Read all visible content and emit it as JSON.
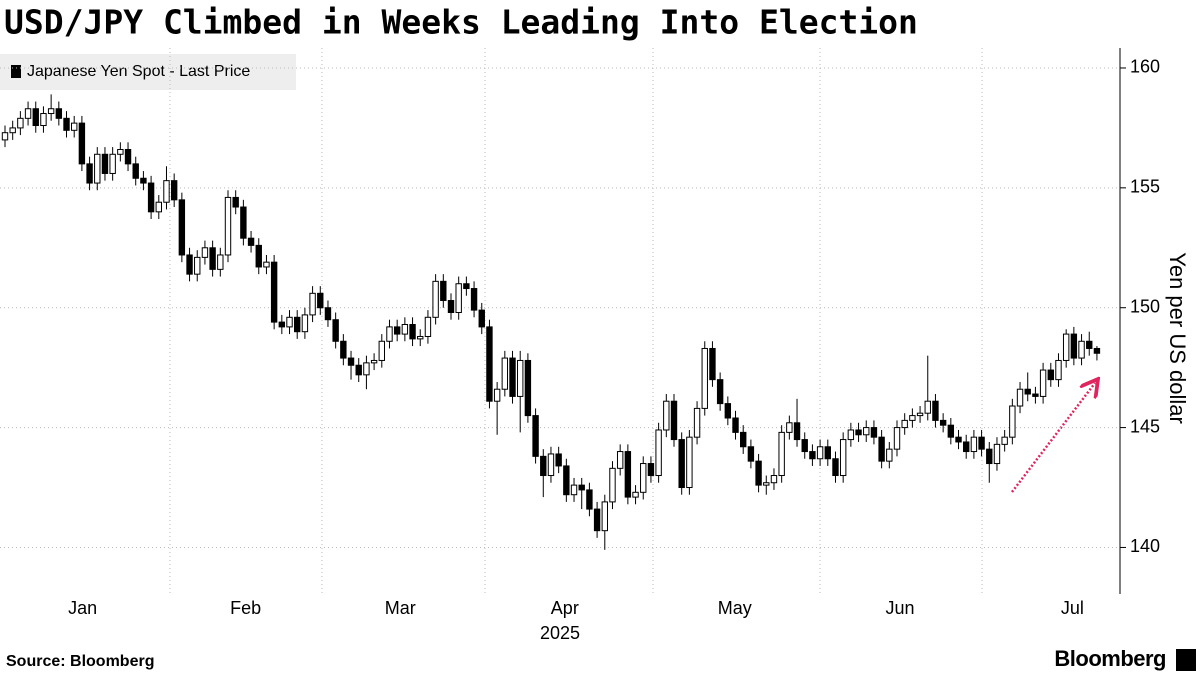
{
  "chart_data": {
    "type": "candlestick",
    "title": "USD/JPY Climbed in Weeks Leading Into Election",
    "legend": "Japanese Yen Spot - Last Price",
    "y_label": "Yen per US dollar",
    "x_label": "2025",
    "source": "Source: Bloomberg",
    "brand": "Bloomberg",
    "up_color": "#ffffff",
    "down_color": "#000000",
    "ylim": [
      138.1,
      160.75
    ],
    "yticks": [
      140,
      145,
      150,
      155,
      160
    ],
    "xlim": [
      -0.65,
      145
    ],
    "xticks": [
      {
        "value": 10.1,
        "label": "Jan"
      },
      {
        "value": 31.3,
        "label": "Feb"
      },
      {
        "value": 51.4,
        "label": "Mar"
      },
      {
        "value": 72.8,
        "label": "Apr"
      },
      {
        "value": 94.9,
        "label": "May"
      },
      {
        "value": 116.4,
        "label": "Jun"
      },
      {
        "value": 138.8,
        "label": "Jul"
      }
    ],
    "grid": true,
    "open": [
      157.0,
      157.3,
      157.5,
      157.9,
      158.3,
      157.6,
      158.1,
      158.3,
      157.9,
      157.4,
      157.7,
      156.0,
      155.2,
      156.4,
      155.6,
      156.4,
      156.6,
      156.0,
      155.4,
      155.2,
      154.0,
      154.4,
      155.3,
      154.5,
      152.2,
      151.4,
      152.1,
      152.5,
      151.6,
      152.2,
      154.6,
      154.2,
      152.9,
      152.6,
      151.7,
      151.9,
      149.4,
      149.2,
      149.6,
      149.0,
      149.7,
      150.6,
      150.0,
      149.5,
      148.6,
      147.9,
      147.6,
      147.2,
      147.7,
      147.8,
      148.6,
      149.2,
      148.9,
      149.3,
      148.7,
      148.8,
      149.6,
      151.1,
      150.3,
      149.8,
      151.0,
      150.8,
      149.9,
      149.2,
      146.1,
      146.6,
      147.9,
      146.3,
      147.8,
      145.5,
      143.8,
      143.0,
      143.9,
      143.4,
      142.2,
      142.6,
      142.4,
      141.6,
      140.7,
      141.9,
      143.3,
      144.0,
      142.1,
      142.3,
      143.5,
      143.0,
      144.9,
      146.1,
      144.5,
      142.5,
      144.6,
      145.8,
      148.3,
      147.0,
      146.0,
      145.4,
      144.8,
      144.2,
      143.6,
      142.6,
      142.7,
      143.0,
      144.8,
      145.2,
      144.5,
      144.0,
      143.7,
      144.2,
      143.7,
      143.0,
      144.5,
      144.9,
      144.7,
      145.0,
      144.6,
      143.6,
      144.1,
      145.0,
      145.3,
      145.5,
      145.6,
      146.1,
      145.3,
      145.1,
      144.6,
      144.4,
      144.0,
      144.6,
      144.1,
      143.5,
      144.3,
      144.6,
      145.9,
      146.6,
      146.4,
      146.3,
      147.4,
      147.0,
      147.8,
      148.9,
      147.9,
      148.6,
      148.3
    ],
    "high": [
      157.6,
      157.8,
      158.2,
      158.6,
      158.6,
      158.4,
      158.9,
      158.6,
      158.2,
      158.0,
      158.0,
      156.3,
      156.7,
      156.7,
      156.7,
      156.9,
      156.9,
      156.3,
      155.7,
      155.5,
      154.7,
      155.9,
      155.6,
      154.8,
      152.5,
      152.4,
      152.8,
      152.8,
      152.5,
      154.9,
      154.9,
      154.5,
      153.2,
      152.9,
      152.2,
      152.2,
      149.7,
      149.9,
      149.9,
      150.0,
      150.9,
      150.9,
      150.3,
      149.8,
      148.9,
      148.2,
      147.9,
      148.0,
      148.1,
      148.9,
      149.5,
      149.5,
      149.6,
      149.6,
      149.1,
      149.9,
      151.4,
      151.4,
      150.6,
      151.3,
      151.3,
      151.1,
      150.2,
      149.5,
      146.9,
      148.2,
      148.2,
      148.2,
      148.1,
      145.8,
      144.1,
      144.2,
      144.2,
      143.7,
      142.9,
      142.9,
      142.7,
      141.9,
      142.2,
      143.6,
      144.3,
      144.3,
      142.6,
      143.8,
      143.8,
      145.2,
      146.4,
      146.4,
      144.8,
      144.9,
      146.1,
      148.6,
      148.6,
      147.3,
      146.3,
      145.7,
      145.1,
      144.5,
      143.9,
      143.0,
      143.3,
      145.1,
      145.5,
      146.2,
      144.8,
      144.3,
      144.5,
      144.5,
      144.0,
      144.8,
      145.2,
      145.2,
      145.3,
      145.3,
      144.9,
      144.4,
      145.3,
      145.6,
      145.8,
      145.9,
      148.0,
      146.4,
      145.6,
      145.4,
      144.9,
      144.7,
      144.9,
      144.9,
      144.4,
      144.6,
      144.9,
      146.2,
      146.9,
      147.3,
      146.7,
      147.7,
      147.7,
      148.1,
      149.1,
      149.2,
      148.9,
      149.0,
      148.4
    ],
    "low": [
      156.7,
      157.0,
      157.2,
      157.6,
      157.3,
      157.3,
      157.8,
      157.6,
      157.1,
      157.1,
      155.7,
      154.9,
      154.9,
      155.3,
      155.3,
      156.1,
      155.7,
      155.1,
      154.9,
      153.7,
      153.7,
      154.1,
      154.2,
      151.9,
      151.1,
      151.1,
      151.8,
      151.3,
      151.3,
      151.9,
      153.9,
      152.6,
      152.3,
      151.4,
      151.4,
      149.1,
      148.9,
      148.9,
      148.7,
      148.7,
      149.4,
      149.7,
      149.2,
      148.3,
      147.6,
      147.0,
      146.9,
      146.6,
      147.4,
      147.5,
      148.3,
      148.6,
      148.6,
      148.4,
      148.4,
      148.5,
      149.3,
      150.0,
      149.5,
      149.5,
      150.5,
      149.6,
      148.9,
      145.8,
      144.7,
      146.3,
      146.0,
      144.8,
      145.2,
      143.5,
      142.1,
      142.7,
      143.1,
      141.9,
      141.9,
      141.6,
      141.3,
      140.4,
      139.9,
      141.6,
      143.0,
      141.8,
      141.8,
      142.0,
      142.7,
      142.7,
      144.6,
      144.2,
      142.2,
      142.2,
      144.3,
      145.5,
      146.7,
      145.7,
      145.1,
      144.5,
      143.9,
      143.3,
      142.3,
      142.2,
      142.4,
      142.7,
      144.5,
      144.2,
      143.7,
      143.4,
      143.4,
      143.4,
      142.7,
      142.7,
      144.2,
      144.4,
      144.4,
      144.3,
      143.3,
      143.3,
      143.8,
      144.7,
      145.0,
      145.2,
      145.3,
      145.0,
      144.8,
      144.3,
      144.1,
      143.7,
      143.7,
      143.8,
      142.7,
      143.2,
      144.0,
      144.3,
      145.6,
      146.1,
      146.0,
      146.0,
      146.7,
      146.7,
      147.5,
      147.6,
      147.6,
      148.0,
      147.8
    ],
    "close": [
      157.3,
      157.5,
      157.9,
      158.3,
      157.6,
      158.1,
      158.3,
      157.9,
      157.4,
      157.7,
      156.0,
      155.2,
      156.4,
      155.6,
      156.4,
      156.6,
      156.0,
      155.4,
      155.2,
      154.0,
      154.4,
      155.3,
      154.5,
      152.2,
      151.4,
      152.1,
      152.5,
      151.6,
      152.2,
      154.6,
      154.2,
      152.9,
      152.6,
      151.7,
      151.9,
      149.4,
      149.2,
      149.6,
      149.0,
      149.7,
      150.6,
      150.0,
      149.5,
      148.6,
      147.9,
      147.6,
      147.2,
      147.7,
      147.8,
      148.6,
      149.2,
      148.9,
      149.3,
      148.7,
      148.8,
      149.6,
      151.1,
      150.3,
      149.8,
      151.0,
      150.8,
      149.9,
      149.2,
      146.1,
      146.6,
      147.9,
      146.3,
      147.8,
      145.5,
      143.8,
      143.0,
      143.9,
      143.4,
      142.2,
      142.6,
      142.4,
      141.6,
      140.7,
      141.9,
      143.3,
      144.0,
      142.1,
      142.3,
      143.5,
      143.0,
      144.9,
      146.1,
      144.5,
      142.5,
      144.6,
      145.8,
      148.3,
      147.0,
      146.0,
      145.4,
      144.8,
      144.2,
      143.6,
      142.6,
      142.7,
      143.0,
      144.8,
      145.2,
      144.5,
      144.0,
      143.7,
      144.2,
      143.7,
      143.0,
      144.5,
      144.9,
      144.7,
      145.0,
      144.6,
      143.6,
      144.1,
      145.0,
      145.3,
      145.5,
      145.6,
      146.1,
      145.3,
      145.1,
      144.6,
      144.4,
      144.0,
      144.6,
      144.1,
      143.5,
      144.3,
      144.6,
      145.9,
      146.6,
      146.4,
      146.3,
      147.4,
      147.0,
      147.8,
      148.9,
      147.9,
      148.6,
      148.3,
      148.1
    ]
  }
}
